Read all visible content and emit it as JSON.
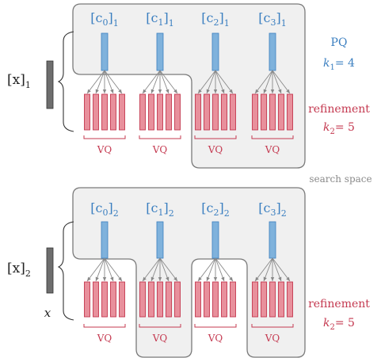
{
  "panels": [
    {
      "input_var": "[x]",
      "input_sub": "1",
      "codewords": [
        {
          "base": "[c",
          "idx": "0",
          "close": "]",
          "sub": "1"
        },
        {
          "base": "[c",
          "idx": "1",
          "close": "]",
          "sub": "1"
        },
        {
          "base": "[c",
          "idx": "2",
          "close": "]",
          "sub": "1"
        },
        {
          "base": "[c",
          "idx": "3",
          "close": "]",
          "sub": "1"
        }
      ],
      "vq_labels": [
        "VQ",
        "VQ",
        "VQ",
        "VQ"
      ],
      "selected_groups": [
        0,
        1
      ],
      "refinement_label": "refinement",
      "k2_label": "k",
      "k2_sub": "2",
      "k2_value": "= 5",
      "pq_label": "PQ",
      "k1_label": "k",
      "k1_sub": "1",
      "k1_value": "= 4",
      "x_label": ""
    },
    {
      "input_var": "[x]",
      "input_sub": "2",
      "codewords": [
        {
          "base": "[c",
          "idx": "0",
          "close": "]",
          "sub": "2"
        },
        {
          "base": "[c",
          "idx": "1",
          "close": "]",
          "sub": "2"
        },
        {
          "base": "[c",
          "idx": "2",
          "close": "]",
          "sub": "2"
        },
        {
          "base": "[c",
          "idx": "3",
          "close": "]",
          "sub": "2"
        }
      ],
      "vq_labels": [
        "VQ",
        "VQ",
        "VQ",
        "VQ"
      ],
      "selected_groups": [
        0,
        2
      ],
      "refinement_label": "refinement",
      "k2_label": "k",
      "k2_sub": "2",
      "k2_value": "= 5",
      "pq_label": "",
      "k1_label": "",
      "k1_sub": "",
      "k1_value": "",
      "x_label": "x"
    }
  ],
  "search_space_label": "search space",
  "colors": {
    "codeword_blue": "#7fb2dc",
    "codeword_stroke": "#3b7fc0",
    "bar_red": "#e8909c",
    "bar_stroke": "#c4384f",
    "region_fill": "#f0f0f0",
    "region_stroke": "#7a7a7a",
    "input_bar": "#6e6e6e",
    "arrow": "#888888"
  }
}
